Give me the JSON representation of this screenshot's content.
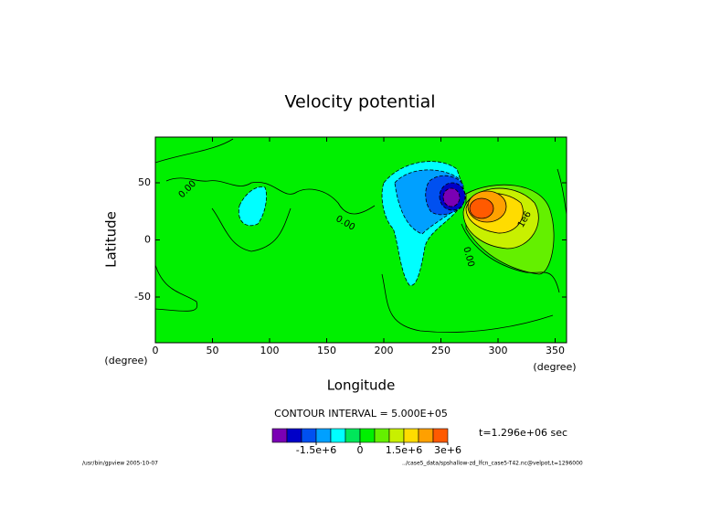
{
  "chart_data": {
    "type": "contour",
    "title": "Velocity potential",
    "xlabel": "Longitude",
    "ylabel": "Latitude",
    "xunit": "(degree)",
    "yunit": "(degree)",
    "xlim": [
      0,
      360
    ],
    "ylim": [
      -90,
      90
    ],
    "xticks": [
      0,
      50,
      100,
      150,
      200,
      250,
      300,
      350
    ],
    "yticks": [
      -50,
      0,
      50
    ],
    "contour_labels": [
      "0.00",
      "0.00",
      "0.00",
      "1e6"
    ],
    "contour_interval": "CONTOUR INTERVAL = 5.000E+05",
    "colorbar": {
      "levels": [
        -3000000,
        3000000
      ],
      "colors": [
        "#7a00b4",
        "#0000c8",
        "#0050f0",
        "#00a0ff",
        "#00ffff",
        "#00e65a",
        "#00f000",
        "#64f000",
        "#c8f000",
        "#ffdc00",
        "#ffa000",
        "#ff5a00"
      ],
      "ticks": [
        {
          "value": -1500000,
          "label": "-1.5e+6"
        },
        0,
        {
          "value": 1500000,
          "label": "1.5e+6"
        },
        {
          "value": 3000000,
          "label": "3e+6"
        }
      ]
    },
    "time": "t=1.296e+06 sec",
    "footer_left": "/usr/bin/gpview  2005-10-07",
    "footer_right": "../case5_data/spshallow-zd_lfcn_case5-T42.nc@velpot,t=1296000"
  }
}
